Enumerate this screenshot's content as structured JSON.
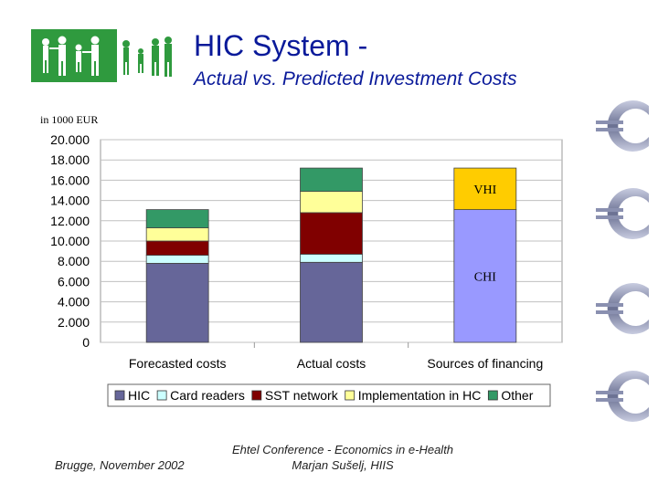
{
  "header": {
    "title_line1": "HIC System -",
    "title_line2": "Actual vs. Predicted Investment Costs"
  },
  "unit_label": "in 1000 EUR",
  "footer": {
    "left": "Brugge, November 2002",
    "center_line1": "Ehtel Conference - Economics in e-Health",
    "center_line2": "Marjan Sušelj, HIIS"
  },
  "colors": {
    "HIC": "#666699",
    "Card readers": "#ccffff",
    "SST network": "#800000",
    "Implementation in HC": "#ffff99",
    "Other": "#339966",
    "VHI": "#ffcc00",
    "CHI": "#9999ff",
    "title": "#0a1a9a",
    "logo_green": "#2f9a3e"
  },
  "chart_data": {
    "type": "bar",
    "stacked": true,
    "categories": [
      "Forecasted costs",
      "Actual costs",
      "Sources of financing"
    ],
    "series": [
      {
        "name": "HIC",
        "values": [
          7.8,
          7.9,
          0
        ]
      },
      {
        "name": "Card readers",
        "values": [
          0.8,
          0.8,
          0
        ]
      },
      {
        "name": "SST network",
        "values": [
          1.4,
          4.1,
          0
        ]
      },
      {
        "name": "Implementation in HC",
        "values": [
          1.3,
          2.1,
          0
        ]
      },
      {
        "name": "Other",
        "values": [
          1.8,
          2.3,
          0
        ]
      }
    ],
    "financing": [
      {
        "label": "CHI",
        "value": 13.1
      },
      {
        "label": "VHI",
        "value": 4.1
      }
    ],
    "legend": [
      "HIC",
      "Card readers",
      "SST network",
      "Implementation in HC",
      "Other"
    ],
    "yticks": [
      "0",
      "2.000",
      "4.000",
      "6.000",
      "8.000",
      "10.000",
      "12.000",
      "14.000",
      "16.000",
      "18.000",
      "20.000"
    ],
    "ylim": [
      0,
      20
    ],
    "grid": true,
    "legend_position": "bottom"
  }
}
